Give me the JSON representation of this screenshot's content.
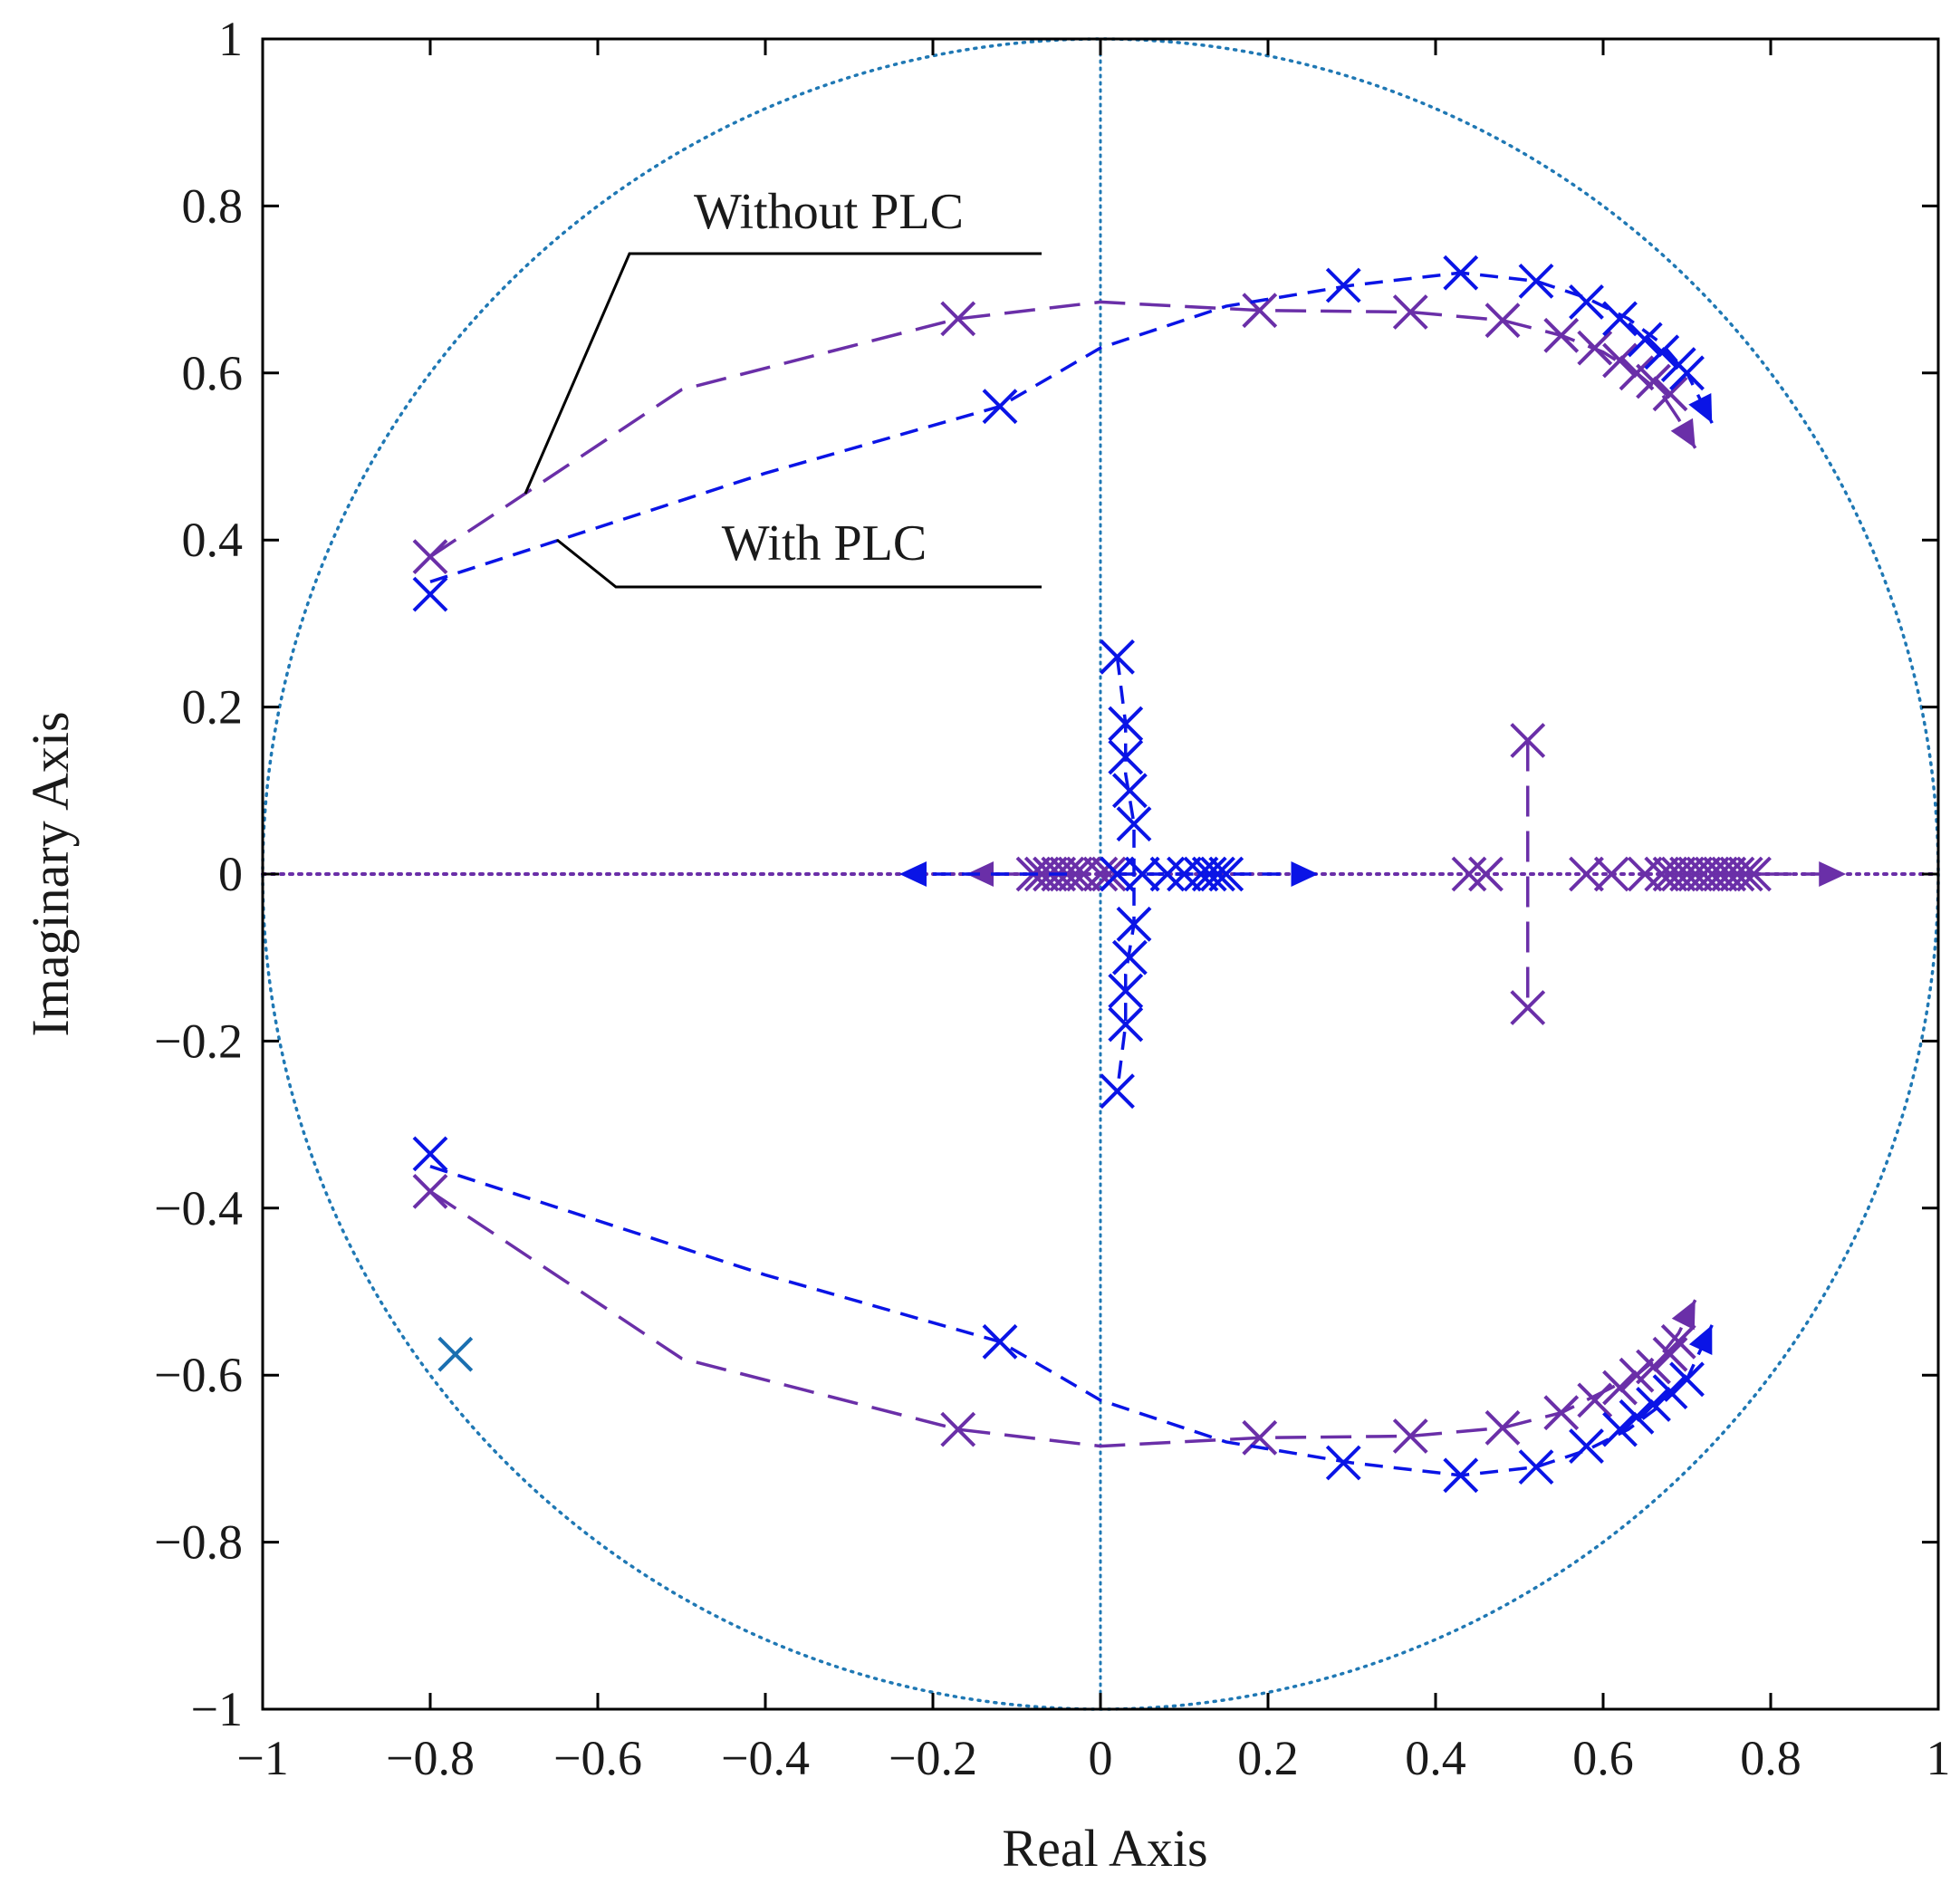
{
  "chart_data": {
    "type": "scatter",
    "title": "",
    "xlabel": "Real Axis",
    "ylabel": "Imaginary Axis",
    "xlim": [
      -1,
      1
    ],
    "ylim": [
      -1,
      1
    ],
    "grid": false,
    "xticks": [
      -1,
      -0.8,
      -0.6,
      -0.4,
      -0.2,
      0,
      0.2,
      0.4,
      0.6,
      0.8,
      1
    ],
    "yticks": [
      -1,
      -0.8,
      -0.6,
      -0.4,
      -0.2,
      0,
      0.2,
      0.4,
      0.6,
      0.8,
      1
    ],
    "xtick_labels": [
      "−1",
      "−0.8",
      "−0.6",
      "−0.4",
      "−0.2",
      "0",
      "0.2",
      "0.4",
      "0.6",
      "0.8",
      "1"
    ],
    "ytick_labels": [
      "−1",
      "−0.8",
      "−0.6",
      "−0.4",
      "−0.2",
      "0",
      "0.2",
      "0.4",
      "0.6",
      "0.8",
      "1"
    ],
    "unit_circle": {
      "radius": 1,
      "color": "#1f78b4",
      "style": "dotted"
    },
    "annotations": [
      {
        "text": "Without PLC",
        "points_to": [
          -0.69,
          0.45
        ]
      },
      {
        "text": "With PLC",
        "points_to": [
          -0.65,
          0.4
        ]
      }
    ],
    "series": [
      {
        "name": "Without PLC",
        "color": "#6a2fa8",
        "line_style": "long-dash",
        "branches": [
          {
            "line": [
              [
                -0.8,
                0.38
              ],
              [
                -0.5,
                0.58
              ],
              [
                -0.17,
                0.665
              ],
              [
                0.0,
                0.685
              ],
              [
                0.19,
                0.675
              ],
              [
                0.37,
                0.673
              ],
              [
                0.48,
                0.663
              ],
              [
                0.55,
                0.645
              ],
              [
                0.6,
                0.625
              ],
              [
                0.64,
                0.6
              ],
              [
                0.67,
                0.575
              ],
              [
                0.69,
                0.545
              ],
              [
                0.71,
                0.51
              ]
            ],
            "markers": [
              [
                -0.8,
                0.38
              ],
              [
                -0.17,
                0.665
              ],
              [
                0.19,
                0.675
              ],
              [
                0.37,
                0.673
              ],
              [
                0.48,
                0.663
              ],
              [
                0.55,
                0.645
              ],
              [
                0.59,
                0.63
              ],
              [
                0.62,
                0.615
              ],
              [
                0.64,
                0.6
              ],
              [
                0.66,
                0.59
              ],
              [
                0.68,
                0.575
              ]
            ],
            "arrow": true
          },
          {
            "line": [
              [
                -0.8,
                -0.38
              ],
              [
                -0.5,
                -0.58
              ],
              [
                -0.17,
                -0.665
              ],
              [
                0.0,
                -0.685
              ],
              [
                0.19,
                -0.675
              ],
              [
                0.37,
                -0.673
              ],
              [
                0.48,
                -0.663
              ],
              [
                0.55,
                -0.645
              ],
              [
                0.6,
                -0.62
              ],
              [
                0.64,
                -0.6
              ],
              [
                0.67,
                -0.575
              ],
              [
                0.69,
                -0.55
              ],
              [
                0.71,
                -0.51
              ]
            ],
            "markers": [
              [
                -0.8,
                -0.38
              ],
              [
                -0.17,
                -0.665
              ],
              [
                0.19,
                -0.675
              ],
              [
                0.37,
                -0.673
              ],
              [
                0.48,
                -0.663
              ],
              [
                0.55,
                -0.645
              ],
              [
                0.59,
                -0.63
              ],
              [
                0.62,
                -0.615
              ],
              [
                0.64,
                -0.6
              ],
              [
                0.66,
                -0.59
              ],
              [
                0.68,
                -0.575
              ],
              [
                0.69,
                -0.56
              ]
            ],
            "arrow": true
          },
          {
            "line": [
              [
                0.51,
                0.16
              ],
              [
                0.51,
                -0.16
              ]
            ],
            "markers": [
              [
                0.51,
                0.16
              ],
              [
                0.51,
                -0.16
              ]
            ],
            "arrow": false
          },
          {
            "line": [
              [
                0.68,
                0.0
              ],
              [
                0.89,
                0.0
              ]
            ],
            "markers": [
              [
                0.44,
                0.0
              ],
              [
                0.46,
                0.0
              ],
              [
                0.58,
                0.0
              ],
              [
                0.61,
                0.0
              ],
              [
                0.65,
                0.0
              ],
              [
                0.67,
                0.0
              ],
              [
                0.68,
                0.0
              ],
              [
                0.69,
                0.0
              ],
              [
                0.7,
                0.0
              ],
              [
                0.71,
                0.0
              ],
              [
                0.72,
                0.0
              ],
              [
                0.73,
                0.0
              ],
              [
                0.74,
                0.0
              ],
              [
                0.75,
                0.0
              ],
              [
                0.76,
                0.0
              ],
              [
                0.77,
                0.0
              ],
              [
                0.78,
                0.0
              ]
            ],
            "arrow": true
          },
          {
            "line": [
              [
                -0.04,
                0.0
              ],
              [
                -0.16,
                0.0
              ]
            ],
            "markers": [
              [
                -0.08,
                0.0
              ],
              [
                -0.07,
                0.0
              ],
              [
                -0.06,
                0.0
              ],
              [
                -0.05,
                0.0
              ],
              [
                -0.04,
                0.0
              ],
              [
                -0.03,
                0.0
              ],
              [
                -0.02,
                0.0
              ],
              [
                0.0,
                0.0
              ],
              [
                0.01,
                0.0
              ],
              [
                0.02,
                0.0
              ]
            ],
            "arrow": true
          }
        ]
      },
      {
        "name": "With PLC",
        "color": "#0a14e6",
        "line_style": "short-dash",
        "branches": [
          {
            "line": [
              [
                -0.8,
                0.35
              ],
              [
                -0.4,
                0.48
              ],
              [
                -0.12,
                0.56
              ],
              [
                0.0,
                0.63
              ],
              [
                0.15,
                0.68
              ],
              [
                0.3,
                0.705
              ],
              [
                0.43,
                0.72
              ],
              [
                0.52,
                0.71
              ],
              [
                0.58,
                0.69
              ],
              [
                0.63,
                0.665
              ],
              [
                0.67,
                0.635
              ],
              [
                0.7,
                0.6
              ],
              [
                0.73,
                0.54
              ]
            ],
            "markers": [
              [
                -0.8,
                0.335
              ],
              [
                -0.12,
                0.56
              ],
              [
                0.29,
                0.705
              ],
              [
                0.43,
                0.72
              ],
              [
                0.52,
                0.71
              ],
              [
                0.58,
                0.685
              ],
              [
                0.62,
                0.665
              ],
              [
                0.65,
                0.64
              ],
              [
                0.67,
                0.625
              ],
              [
                0.69,
                0.61
              ],
              [
                0.7,
                0.6
              ]
            ],
            "arrow": true
          },
          {
            "line": [
              [
                -0.8,
                -0.35
              ],
              [
                -0.4,
                -0.48
              ],
              [
                -0.12,
                -0.56
              ],
              [
                0.0,
                -0.63
              ],
              [
                0.15,
                -0.68
              ],
              [
                0.3,
                -0.705
              ],
              [
                0.43,
                -0.72
              ],
              [
                0.52,
                -0.71
              ],
              [
                0.58,
                -0.69
              ],
              [
                0.63,
                -0.665
              ],
              [
                0.67,
                -0.635
              ],
              [
                0.7,
                -0.605
              ],
              [
                0.73,
                -0.54
              ]
            ],
            "markers": [
              [
                -0.8,
                -0.335
              ],
              [
                -0.12,
                -0.56
              ],
              [
                0.29,
                -0.705
              ],
              [
                0.43,
                -0.72
              ],
              [
                0.52,
                -0.71
              ],
              [
                0.58,
                -0.685
              ],
              [
                0.62,
                -0.665
              ],
              [
                0.64,
                -0.65
              ],
              [
                0.66,
                -0.635
              ],
              [
                0.68,
                -0.62
              ],
              [
                0.7,
                -0.605
              ]
            ],
            "arrow": true
          },
          {
            "line": [
              [
                0.02,
                0.26
              ],
              [
                0.03,
                0.18
              ],
              [
                0.03,
                0.12
              ],
              [
                0.04,
                0.06
              ],
              [
                0.04,
                0.0
              ],
              [
                0.04,
                -0.06
              ],
              [
                0.03,
                -0.12
              ],
              [
                0.03,
                -0.18
              ],
              [
                0.02,
                -0.26
              ]
            ],
            "markers": [
              [
                0.02,
                0.26
              ],
              [
                0.03,
                0.18
              ],
              [
                0.03,
                0.14
              ],
              [
                0.035,
                0.1
              ],
              [
                0.04,
                0.06
              ],
              [
                0.04,
                -0.06
              ],
              [
                0.035,
                -0.1
              ],
              [
                0.03,
                -0.14
              ],
              [
                0.03,
                -0.18
              ],
              [
                0.02,
                -0.26
              ]
            ],
            "arrow": false
          },
          {
            "line": [
              [
                0.02,
                0.0
              ],
              [
                0.26,
                0.0
              ]
            ],
            "markers": [
              [
                0.02,
                0.0
              ],
              [
                0.05,
                0.0
              ],
              [
                0.08,
                0.0
              ],
              [
                0.1,
                0.0
              ],
              [
                0.12,
                0.0
              ],
              [
                0.13,
                0.0
              ],
              [
                0.14,
                0.0
              ],
              [
                0.15,
                0.0
              ]
            ],
            "arrow": true
          },
          {
            "line": [
              [
                -0.04,
                0.0
              ],
              [
                -0.24,
                0.0
              ]
            ],
            "markers": [],
            "arrow": true
          }
        ]
      },
      {
        "name": "marker",
        "color": "#1a6fb0",
        "line_style": "none",
        "branches": [
          {
            "line": [],
            "markers": [
              [
                -0.77,
                -0.575
              ]
            ],
            "arrow": false
          }
        ]
      }
    ],
    "real_axis_line": {
      "y": 0,
      "color": "#6a2fa8",
      "style": "dotted"
    },
    "imag_axis_line": {
      "x": 0,
      "color": "#1f78b4",
      "style": "dotted"
    }
  }
}
